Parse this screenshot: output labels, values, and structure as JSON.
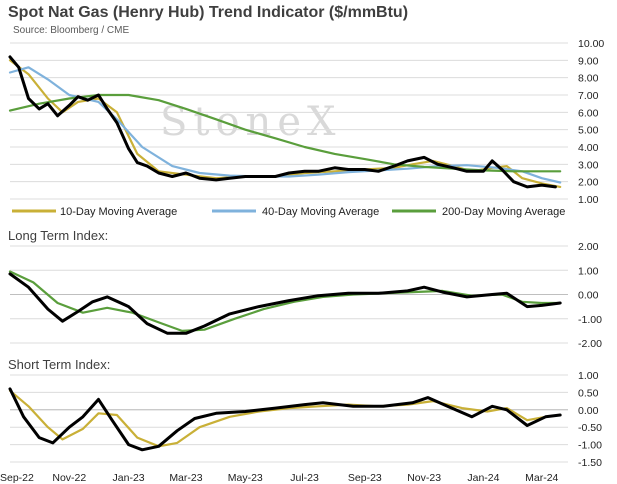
{
  "chart_data": [
    {
      "type": "line",
      "title": "Spot Nat Gas (Henry Hub) Trend Indicator ($/mmBtu)",
      "subtitle": "Source: Bloomberg / CME",
      "watermark": "StoneX",
      "ylim": [
        1.0,
        10.0
      ],
      "y_ticks": [
        "10.00",
        "9.00",
        "8.00",
        "7.00",
        "6.00",
        "5.00",
        "4.00",
        "3.00",
        "2.00",
        "1.00"
      ],
      "legend_position": "bottom",
      "grid": true,
      "series": [
        {
          "name": "",
          "color": "#000000",
          "x": [
            "2022-09-01",
            "2022-09-10",
            "2022-09-20",
            "2022-10-01",
            "2022-10-10",
            "2022-10-20",
            "2022-11-01",
            "2022-11-10",
            "2022-11-20",
            "2022-12-01",
            "2022-12-10",
            "2022-12-20",
            "2023-01-01",
            "2023-01-10",
            "2023-01-20",
            "2023-02-01",
            "2023-02-15",
            "2023-03-01",
            "2023-03-15",
            "2023-04-01",
            "2023-04-15",
            "2023-05-01",
            "2023-05-15",
            "2023-06-01",
            "2023-06-15",
            "2023-07-01",
            "2023-07-15",
            "2023-08-01",
            "2023-08-15",
            "2023-09-01",
            "2023-09-15",
            "2023-10-01",
            "2023-10-15",
            "2023-11-01",
            "2023-11-15",
            "2023-12-01",
            "2023-12-15",
            "2024-01-01",
            "2024-01-10",
            "2024-01-20",
            "2024-02-01",
            "2024-02-15",
            "2024-03-01",
            "2024-03-15"
          ],
          "y": [
            9.2,
            8.6,
            6.8,
            6.2,
            6.5,
            5.8,
            6.4,
            6.9,
            6.7,
            7.0,
            6.2,
            5.4,
            3.9,
            3.1,
            2.9,
            2.5,
            2.3,
            2.5,
            2.2,
            2.1,
            2.2,
            2.3,
            2.3,
            2.3,
            2.5,
            2.6,
            2.6,
            2.8,
            2.7,
            2.7,
            2.6,
            2.9,
            3.2,
            3.4,
            3.0,
            2.8,
            2.6,
            2.6,
            3.2,
            2.7,
            2.0,
            1.7,
            1.8,
            1.7
          ]
        },
        {
          "name": "10-Day Moving Average",
          "color": "#c9b037",
          "x": [
            "2022-09-01",
            "2022-09-20",
            "2022-10-10",
            "2022-10-25",
            "2022-11-10",
            "2022-12-01",
            "2022-12-20",
            "2023-01-10",
            "2023-02-01",
            "2023-03-01",
            "2023-04-01",
            "2023-05-01",
            "2023-06-01",
            "2023-07-01",
            "2023-08-01",
            "2023-09-01",
            "2023-10-01",
            "2023-10-20",
            "2023-11-10",
            "2023-12-01",
            "2023-12-20",
            "2024-01-10",
            "2024-01-25",
            "2024-02-10",
            "2024-03-01",
            "2024-03-20"
          ],
          "y": [
            9.0,
            8.2,
            6.8,
            6.0,
            6.6,
            6.8,
            6.0,
            3.6,
            2.6,
            2.4,
            2.2,
            2.3,
            2.3,
            2.5,
            2.6,
            2.7,
            2.8,
            3.0,
            3.2,
            2.9,
            2.6,
            2.8,
            2.9,
            2.2,
            1.9,
            1.7
          ]
        },
        {
          "name": "40-Day Moving Average",
          "color": "#7fb2dc",
          "x": [
            "2022-09-01",
            "2022-09-20",
            "2022-10-10",
            "2022-11-01",
            "2022-12-01",
            "2022-12-20",
            "2023-01-15",
            "2023-02-15",
            "2023-03-15",
            "2023-04-15",
            "2023-05-15",
            "2023-06-15",
            "2023-07-15",
            "2023-08-15",
            "2023-09-15",
            "2023-10-15",
            "2023-11-15",
            "2023-12-15",
            "2024-01-15",
            "2024-02-10",
            "2024-03-01",
            "2024-03-20"
          ],
          "y": [
            8.3,
            8.6,
            7.9,
            7.0,
            6.6,
            5.6,
            4.0,
            2.9,
            2.5,
            2.35,
            2.3,
            2.3,
            2.4,
            2.55,
            2.65,
            2.75,
            2.9,
            2.95,
            2.8,
            2.6,
            2.2,
            1.95
          ]
        },
        {
          "name": "200-Day Moving Average",
          "color": "#5a9e3c",
          "x": [
            "2022-09-01",
            "2022-10-01",
            "2022-11-01",
            "2022-12-01",
            "2023-01-01",
            "2023-02-01",
            "2023-03-01",
            "2023-04-01",
            "2023-05-01",
            "2023-06-01",
            "2023-07-01",
            "2023-08-01",
            "2023-09-01",
            "2023-10-01",
            "2023-11-01",
            "2023-12-01",
            "2024-01-01",
            "2024-02-01",
            "2024-03-20"
          ],
          "y": [
            6.1,
            6.5,
            6.8,
            7.0,
            7.0,
            6.7,
            6.2,
            5.6,
            5.0,
            4.5,
            4.0,
            3.6,
            3.3,
            3.0,
            2.85,
            2.75,
            2.65,
            2.6,
            2.6
          ]
        }
      ]
    },
    {
      "type": "line",
      "title": "Long Term Index:",
      "ylim": [
        -2.0,
        2.0
      ],
      "y_ticks": [
        "2.00",
        "1.00",
        "0.00",
        "-1.00",
        "-2.00"
      ],
      "grid": true,
      "series": [
        {
          "name": "",
          "color": "#000000",
          "x": [
            "2022-09-01",
            "2022-09-20",
            "2022-10-10",
            "2022-10-25",
            "2022-11-10",
            "2022-11-25",
            "2022-12-10",
            "2023-01-01",
            "2023-01-20",
            "2023-02-10",
            "2023-03-01",
            "2023-03-20",
            "2023-04-15",
            "2023-05-15",
            "2023-06-15",
            "2023-07-15",
            "2023-08-15",
            "2023-09-15",
            "2023-10-15",
            "2023-11-01",
            "2023-11-20",
            "2023-12-15",
            "2024-01-10",
            "2024-01-25",
            "2024-02-15",
            "2024-03-01",
            "2024-03-20"
          ],
          "y": [
            0.85,
            0.3,
            -0.6,
            -1.1,
            -0.7,
            -0.3,
            -0.1,
            -0.5,
            -1.2,
            -1.6,
            -1.6,
            -1.3,
            -0.8,
            -0.5,
            -0.25,
            -0.05,
            0.05,
            0.05,
            0.15,
            0.3,
            0.1,
            -0.1,
            0.0,
            0.05,
            -0.5,
            -0.45,
            -0.35
          ]
        },
        {
          "name": "",
          "color": "#5a9e3c",
          "x": [
            "2022-09-01",
            "2022-09-25",
            "2022-10-20",
            "2022-11-15",
            "2022-12-10",
            "2023-01-05",
            "2023-02-01",
            "2023-02-25",
            "2023-03-20",
            "2023-04-20",
            "2023-05-20",
            "2023-06-20",
            "2023-07-20",
            "2023-08-20",
            "2023-09-20",
            "2023-10-20",
            "2023-11-20",
            "2023-12-20",
            "2024-01-20",
            "2024-02-10",
            "2024-03-01",
            "2024-03-20"
          ],
          "y": [
            0.95,
            0.5,
            -0.35,
            -0.75,
            -0.55,
            -0.75,
            -1.15,
            -1.5,
            -1.45,
            -1.0,
            -0.6,
            -0.3,
            -0.1,
            0.0,
            0.05,
            0.1,
            0.15,
            -0.05,
            0.0,
            -0.3,
            -0.35,
            -0.35
          ]
        }
      ]
    },
    {
      "type": "line",
      "title": "Short Term Index:",
      "ylim": [
        -1.5,
        1.0
      ],
      "y_ticks": [
        "1.00",
        "0.50",
        "0.00",
        "-0.50",
        "-1.00",
        "-1.50"
      ],
      "x_ticks": [
        "Sep-22",
        "Nov-22",
        "Jan-23",
        "Mar-23",
        "May-23",
        "Jul-23",
        "Sep-23",
        "Nov-23",
        "Jan-24",
        "Mar-24"
      ],
      "grid": true,
      "series": [
        {
          "name": "",
          "color": "#000000",
          "x": [
            "2022-09-01",
            "2022-09-15",
            "2022-10-01",
            "2022-10-15",
            "2022-11-01",
            "2022-11-15",
            "2022-12-01",
            "2022-12-15",
            "2023-01-01",
            "2023-01-15",
            "2023-02-01",
            "2023-02-20",
            "2023-03-10",
            "2023-04-01",
            "2023-05-01",
            "2023-06-01",
            "2023-07-01",
            "2023-07-20",
            "2023-08-20",
            "2023-09-20",
            "2023-10-20",
            "2023-11-05",
            "2023-11-25",
            "2023-12-20",
            "2024-01-10",
            "2024-01-25",
            "2024-02-15",
            "2024-03-05",
            "2024-03-20"
          ],
          "y": [
            0.6,
            -0.2,
            -0.8,
            -0.95,
            -0.5,
            -0.2,
            0.3,
            -0.3,
            -1.0,
            -1.15,
            -1.05,
            -0.6,
            -0.25,
            -0.1,
            -0.05,
            0.05,
            0.15,
            0.2,
            0.1,
            0.1,
            0.2,
            0.35,
            0.1,
            -0.2,
            0.1,
            0.0,
            -0.45,
            -0.2,
            -0.15
          ]
        },
        {
          "name": "",
          "color": "#c9b037",
          "x": [
            "2022-09-01",
            "2022-09-20",
            "2022-10-10",
            "2022-10-25",
            "2022-11-15",
            "2022-12-01",
            "2022-12-20",
            "2023-01-10",
            "2023-02-01",
            "2023-02-20",
            "2023-03-15",
            "2023-04-15",
            "2023-05-15",
            "2023-06-15",
            "2023-07-15",
            "2023-08-15",
            "2023-09-15",
            "2023-10-15",
            "2023-11-10",
            "2023-12-10",
            "2024-01-05",
            "2024-01-25",
            "2024-02-15",
            "2024-03-05",
            "2024-03-20"
          ],
          "y": [
            0.55,
            0.1,
            -0.5,
            -0.85,
            -0.55,
            -0.1,
            -0.15,
            -0.8,
            -1.05,
            -0.95,
            -0.5,
            -0.2,
            -0.05,
            0.05,
            0.1,
            0.15,
            0.1,
            0.15,
            0.25,
            0.05,
            -0.05,
            0.05,
            -0.3,
            -0.2,
            -0.15
          ]
        }
      ]
    }
  ]
}
